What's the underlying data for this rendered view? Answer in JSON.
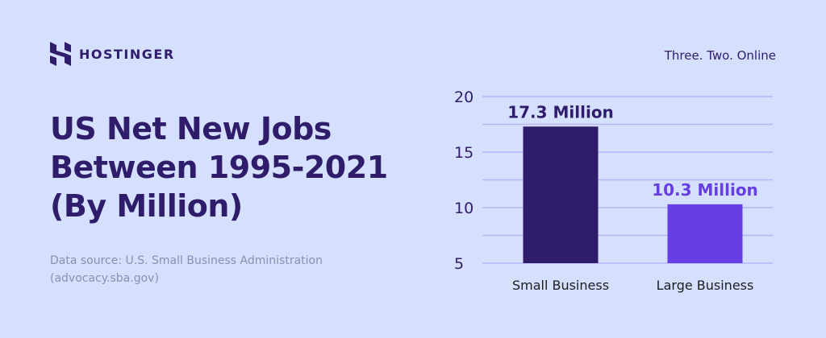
{
  "brand": {
    "name": "HOSTINGER",
    "tagline": "Three. Two. Online"
  },
  "title_lines": [
    "US Net New Jobs",
    "Between 1995-2021",
    "(By Million)"
  ],
  "source_lines": [
    "Data source: U.S. Small Business Administration",
    "(advocacy.sba.gov)"
  ],
  "chart_data": {
    "type": "bar",
    "categories": [
      "Small Business",
      "Large Business"
    ],
    "values": [
      17.3,
      10.3
    ],
    "data_labels": [
      "17.3 Million",
      "10.3 Million"
    ],
    "colors": [
      "#2f1c6a",
      "#673de6"
    ],
    "yticks": [
      5,
      10,
      15,
      20
    ],
    "ylim": [
      5,
      20
    ],
    "grid": true
  }
}
